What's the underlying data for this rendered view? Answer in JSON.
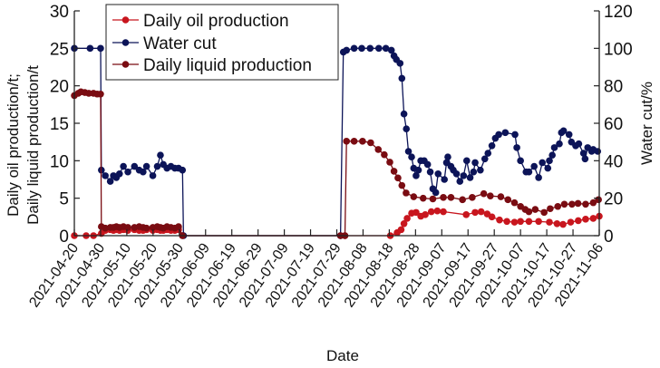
{
  "chart_data": {
    "type": "line",
    "title": "",
    "xlabel": "Date",
    "ylabel_left": [
      "Daily oil production/t;",
      "Daily liquid production/t"
    ],
    "ylabel_right": "Water cut/%",
    "x_start_date": "2021-04-20",
    "x_unit": "days since 2021-04-20",
    "xlim": [
      0,
      200
    ],
    "ylim_left": [
      0,
      30
    ],
    "ylim_right": [
      0,
      120
    ],
    "yticks_left": [
      0,
      5,
      10,
      15,
      20,
      25,
      30
    ],
    "yticks_right": [
      0,
      20,
      40,
      60,
      80,
      100,
      120
    ],
    "xtick_labels": [
      "2021-04-20",
      "2021-04-30",
      "2021-05-10",
      "2021-05-20",
      "2021-05-30",
      "2021-06-09",
      "2021-06-19",
      "2021-06-29",
      "2021-07-09",
      "2021-07-19",
      "2021-07-29",
      "2021-08-08",
      "2021-08-18",
      "2021-08-28",
      "2021-09-07",
      "2021-09-17",
      "2021-09-27",
      "2021-10-07",
      "2021-10-17",
      "2021-10-27",
      "2021-11-06"
    ],
    "grid": false,
    "legend_position": "top-center",
    "series": [
      {
        "name": "Daily oil production",
        "axis": "left",
        "color": "#c8161e",
        "points": [
          [
            0,
            0
          ],
          [
            4.5,
            0
          ],
          [
            7.3,
            0
          ],
          [
            10.3,
            0.3
          ],
          [
            11.8,
            0.7
          ],
          [
            13.7,
            0.8
          ],
          [
            14.9,
            0.7
          ],
          [
            16,
            0.8
          ],
          [
            17.2,
            0.7
          ],
          [
            18.7,
            0.8
          ],
          [
            20.4,
            0.7
          ],
          [
            22.9,
            0.8
          ],
          [
            24.7,
            0.7
          ],
          [
            26.2,
            0.7
          ],
          [
            27.5,
            0.8
          ],
          [
            29.9,
            0.7
          ],
          [
            31.6,
            0.8
          ],
          [
            32.8,
            0.7
          ],
          [
            33.9,
            0.7
          ],
          [
            35.3,
            0.8
          ],
          [
            36.8,
            0.7
          ],
          [
            38.3,
            0.7
          ],
          [
            39.7,
            0.8
          ],
          [
            41.2,
            0
          ],
          [
            101.4,
            0
          ],
          [
            103.1,
            0
          ],
          [
            120.4,
            0
          ],
          [
            123,
            0.4
          ],
          [
            124.5,
            0.8
          ],
          [
            125.6,
            1.6
          ],
          [
            126.8,
            2.3
          ],
          [
            128.5,
            3.0
          ],
          [
            130.2,
            3.1
          ],
          [
            132,
            2.6
          ],
          [
            133.7,
            2.8
          ],
          [
            136,
            3.2
          ],
          [
            138.3,
            3.3
          ],
          [
            140.6,
            3.2
          ],
          [
            149.3,
            2.8
          ],
          [
            152.7,
            3.1
          ],
          [
            155,
            3.2
          ],
          [
            157.3,
            2.9
          ],
          [
            159.1,
            2.5
          ],
          [
            162,
            2.1
          ],
          [
            164.8,
            1.9
          ],
          [
            167.7,
            1.8
          ],
          [
            170,
            1.9
          ],
          [
            173.2,
            1.9
          ],
          [
            176.9,
            1.9
          ],
          [
            181,
            1.8
          ],
          [
            183.9,
            1.6
          ],
          [
            186.2,
            1.5
          ],
          [
            189.1,
            1.8
          ],
          [
            192,
            2.0
          ],
          [
            194.8,
            2.2
          ],
          [
            197.7,
            2.3
          ],
          [
            200,
            2.6
          ]
        ]
      },
      {
        "name": "Water cut",
        "axis": "right",
        "color": "#0c1458",
        "points": [
          [
            0,
            100
          ],
          [
            6,
            100
          ],
          [
            10,
            100
          ],
          [
            10.3,
            35
          ],
          [
            11.8,
            32
          ],
          [
            13.7,
            29
          ],
          [
            14.9,
            32
          ],
          [
            16,
            31
          ],
          [
            17.2,
            33
          ],
          [
            18.7,
            37
          ],
          [
            20.4,
            34
          ],
          [
            22.9,
            37
          ],
          [
            24.7,
            35
          ],
          [
            26.2,
            34
          ],
          [
            27.5,
            37
          ],
          [
            29.9,
            32
          ],
          [
            31.6,
            37
          ],
          [
            32.8,
            43
          ],
          [
            33.9,
            38
          ],
          [
            35.3,
            36
          ],
          [
            36.8,
            37
          ],
          [
            38.3,
            36
          ],
          [
            39.7,
            36
          ],
          [
            41.2,
            35
          ],
          [
            41.6,
            0
          ],
          [
            101.4,
            0
          ],
          [
            102.5,
            98
          ],
          [
            103.7,
            99
          ],
          [
            106.6,
            100
          ],
          [
            109.5,
            100
          ],
          [
            112.7,
            100
          ],
          [
            116,
            100
          ],
          [
            118.7,
            100
          ],
          [
            120.8,
            99
          ],
          [
            121.8,
            96
          ],
          [
            122.7,
            94
          ],
          [
            124.1,
            92
          ],
          [
            124.8,
            84
          ],
          [
            125.6,
            65
          ],
          [
            126.5,
            57
          ],
          [
            127.3,
            45
          ],
          [
            128.5,
            42
          ],
          [
            129.3,
            36
          ],
          [
            130.2,
            32
          ],
          [
            131.1,
            35
          ],
          [
            132,
            40
          ],
          [
            133.3,
            40
          ],
          [
            134.6,
            38
          ],
          [
            135.6,
            34
          ],
          [
            136.6,
            25
          ],
          [
            137.7,
            23
          ],
          [
            138.6,
            33
          ],
          [
            141,
            30
          ],
          [
            141.8,
            39
          ],
          [
            142.3,
            42
          ],
          [
            143.5,
            37
          ],
          [
            144.4,
            35
          ],
          [
            145.6,
            33
          ],
          [
            146.9,
            29
          ],
          [
            148.3,
            32
          ],
          [
            149.5,
            40
          ],
          [
            150.8,
            31
          ],
          [
            152.1,
            34
          ],
          [
            152.7,
            39
          ],
          [
            154.7,
            35
          ],
          [
            156.4,
            41
          ],
          [
            157.6,
            44
          ],
          [
            159.1,
            48
          ],
          [
            160.4,
            52
          ],
          [
            161.7,
            54
          ],
          [
            164.2,
            55
          ],
          [
            167.9,
            54
          ],
          [
            168.6,
            47
          ],
          [
            170,
            40
          ],
          [
            172.1,
            34
          ],
          [
            173.2,
            34
          ],
          [
            175.2,
            37
          ],
          [
            176.9,
            31
          ],
          [
            178.3,
            39
          ],
          [
            180.4,
            36
          ],
          [
            181,
            40
          ],
          [
            182.1,
            43
          ],
          [
            182.9,
            47
          ],
          [
            184.8,
            49
          ],
          [
            185.6,
            55
          ],
          [
            186.4,
            56
          ],
          [
            188.5,
            54
          ],
          [
            189.4,
            50
          ],
          [
            191,
            48
          ],
          [
            192.2,
            49
          ],
          [
            194,
            44
          ],
          [
            194.6,
            41
          ],
          [
            195.6,
            47
          ],
          [
            197.1,
            45
          ],
          [
            197.7,
            46
          ],
          [
            199.4,
            45
          ]
        ]
      },
      {
        "name": "Daily liquid production",
        "axis": "left",
        "color": "#7a0c12",
        "points": [
          [
            0,
            18.7
          ],
          [
            1.5,
            19.0
          ],
          [
            2.5,
            19.2
          ],
          [
            4,
            19.1
          ],
          [
            5.5,
            19.0
          ],
          [
            7.3,
            19.0
          ],
          [
            8.7,
            18.9
          ],
          [
            10,
            18.9
          ],
          [
            10.3,
            1.2
          ],
          [
            11.8,
            1.0
          ],
          [
            13.7,
            1.1
          ],
          [
            14.9,
            1.1
          ],
          [
            16,
            1.2
          ],
          [
            17.2,
            1.1
          ],
          [
            18.7,
            1.2
          ],
          [
            20.4,
            1.1
          ],
          [
            22.9,
            1.1
          ],
          [
            24.7,
            1.2
          ],
          [
            26.2,
            1.1
          ],
          [
            27.5,
            1.0
          ],
          [
            29.9,
            1.1
          ],
          [
            31.6,
            1.2
          ],
          [
            32.8,
            1.1
          ],
          [
            33.9,
            1.0
          ],
          [
            35.3,
            1.2
          ],
          [
            36.8,
            1.1
          ],
          [
            38.3,
            1.0
          ],
          [
            39.7,
            1.2
          ],
          [
            41.2,
            0
          ],
          [
            101.4,
            0
          ],
          [
            103.1,
            0
          ],
          [
            103.7,
            12.6
          ],
          [
            106.6,
            12.6
          ],
          [
            109.8,
            12.6
          ],
          [
            112.9,
            12.4
          ],
          [
            115.8,
            11.5
          ],
          [
            118.1,
            10.8
          ],
          [
            120.2,
            9.8
          ],
          [
            121.8,
            8.6
          ],
          [
            123.3,
            7.7
          ],
          [
            124.8,
            6.7
          ],
          [
            126.4,
            5.7
          ],
          [
            129.3,
            5.2
          ],
          [
            132.9,
            5.0
          ],
          [
            136.6,
            4.9
          ],
          [
            140.6,
            5.1
          ],
          [
            143.5,
            5.1
          ],
          [
            147.9,
            4.8
          ],
          [
            151.6,
            5.1
          ],
          [
            156,
            5.6
          ],
          [
            158.5,
            5.3
          ],
          [
            162.5,
            5.2
          ],
          [
            165.2,
            4.8
          ],
          [
            167.7,
            4.4
          ],
          [
            170,
            3.9
          ],
          [
            171.8,
            3.5
          ],
          [
            173.2,
            3.2
          ],
          [
            175.6,
            3.5
          ],
          [
            179,
            3.1
          ],
          [
            181.3,
            3.6
          ],
          [
            184.2,
            3.9
          ],
          [
            186.7,
            4.2
          ],
          [
            189.6,
            4.2
          ],
          [
            191.9,
            4.3
          ],
          [
            194.8,
            4.2
          ],
          [
            197.7,
            4.4
          ],
          [
            199.7,
            4.8
          ]
        ]
      }
    ]
  }
}
